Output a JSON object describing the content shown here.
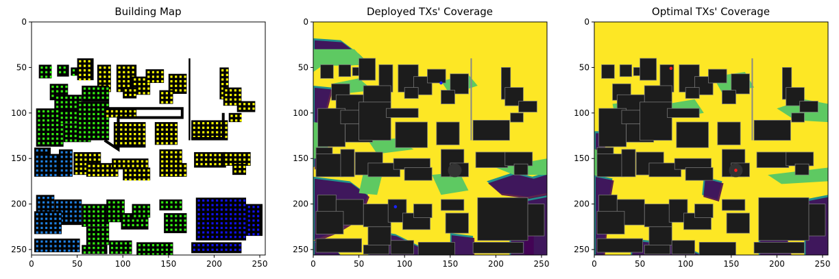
{
  "chart_data": [
    {
      "type": "heatmap",
      "title": "Building Map",
      "xlim": [
        0,
        256
      ],
      "ylim": [
        256,
        0
      ],
      "xticks": [
        0,
        50,
        100,
        150,
        200,
        250
      ],
      "yticks": [
        0,
        50,
        100,
        150,
        200,
        250
      ],
      "colors": {
        "background": "#ffffff",
        "building": "#000000",
        "yellow": "#ffff00",
        "green": "#33ee11",
        "blue": "#1e7fe0",
        "dark_blue": "#1010ee"
      }
    },
    {
      "type": "heatmap",
      "title": "Deployed TXs' Coverage",
      "xlim": [
        0,
        256
      ],
      "ylim": [
        256,
        0
      ],
      "xticks": [
        0,
        50,
        100,
        150,
        200,
        250
      ],
      "yticks": [
        0,
        50,
        100,
        150,
        200,
        250
      ],
      "tx_points": [
        {
          "x": 140,
          "y": 67
        },
        {
          "x": 90,
          "y": 203
        }
      ],
      "tx_color": "#1a22ff",
      "colors": {
        "high": "#fde725",
        "mid": "#5ec962",
        "low": "#21918c",
        "none": "#440154",
        "building": "#1c1c1c"
      }
    },
    {
      "type": "heatmap",
      "title": "Optimal TXs' Coverage",
      "xlim": [
        0,
        256
      ],
      "ylim": [
        256,
        0
      ],
      "xticks": [
        0,
        50,
        100,
        150,
        200,
        250
      ],
      "yticks": [
        0,
        50,
        100,
        150,
        200,
        250
      ],
      "tx_points": [
        {
          "x": 84,
          "y": 51
        },
        {
          "x": 155,
          "y": 163
        }
      ],
      "tx_color": "#ff1a1a",
      "colors": {
        "high": "#fde725",
        "mid": "#5ec962",
        "low": "#21918c",
        "none": "#440154",
        "building": "#1c1c1c"
      }
    }
  ]
}
